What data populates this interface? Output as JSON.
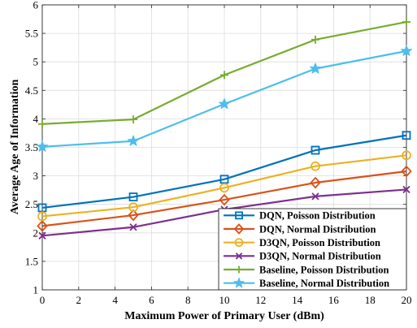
{
  "chart_data": {
    "type": "line",
    "title": "",
    "xlabel": "Maximum Power of Primary User (dBm)",
    "ylabel": "Average Age of Information",
    "xlim": [
      0,
      20
    ],
    "ylim": [
      1,
      6
    ],
    "xticks": [
      "0",
      "2",
      "4",
      "6",
      "8",
      "10",
      "12",
      "14",
      "16",
      "18",
      "20"
    ],
    "yticks": [
      "1",
      "1.5",
      "2",
      "2.5",
      "3",
      "3.5",
      "4",
      "4.5",
      "5",
      "5.5",
      "6"
    ],
    "grid": true,
    "legend_position": "bottom-right",
    "x": [
      0,
      5,
      10,
      15,
      20
    ],
    "series": [
      {
        "name": "DQN, Poisson Distribution",
        "color": "#0072BD",
        "marker": "square",
        "values": [
          2.44,
          2.63,
          2.94,
          3.45,
          3.71
        ]
      },
      {
        "name": "DQN, Normal Distribution",
        "color": "#D95319",
        "marker": "diamond",
        "values": [
          2.12,
          2.31,
          2.58,
          2.88,
          3.08
        ]
      },
      {
        "name": "D3QN, Poisson Distribution",
        "color": "#EDB120",
        "marker": "circle",
        "values": [
          2.29,
          2.45,
          2.79,
          3.17,
          3.36
        ]
      },
      {
        "name": "D3QN, Normal Distribution",
        "color": "#7E2F8E",
        "marker": "x",
        "values": [
          1.95,
          2.1,
          2.41,
          2.64,
          2.76
        ]
      },
      {
        "name": "Baseline, Poisson Distribution",
        "color": "#77AC30",
        "marker": "plus",
        "values": [
          3.91,
          3.99,
          4.77,
          5.39,
          5.7
        ]
      },
      {
        "name": "Baseline, Normal Distribution",
        "color": "#4DBEEE",
        "marker": "star",
        "values": [
          3.51,
          3.61,
          4.26,
          4.88,
          5.19
        ]
      }
    ]
  }
}
